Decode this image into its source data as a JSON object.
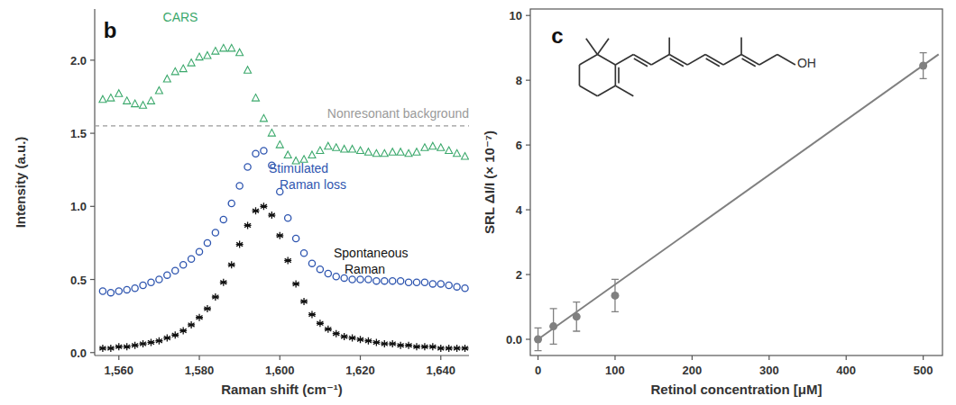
{
  "chart_data": [
    {
      "type": "scatter",
      "title": "b",
      "x_label": "Raman shift (cm⁻¹)",
      "y_label": "Intensity (a.u.)",
      "x": [
        1556,
        1558,
        1560,
        1562,
        1564,
        1566,
        1568,
        1570,
        1572,
        1574,
        1576,
        1578,
        1580,
        1582,
        1584,
        1586,
        1588,
        1590,
        1592,
        1594,
        1596,
        1598,
        1600,
        1602,
        1604,
        1606,
        1608,
        1610,
        1612,
        1614,
        1616,
        1618,
        1620,
        1622,
        1624,
        1626,
        1628,
        1630,
        1632,
        1634,
        1636,
        1638,
        1640,
        1642,
        1644,
        1646
      ],
      "series": [
        {
          "name": "CARS",
          "color": "#3aa86b",
          "marker": "triangle",
          "values": [
            1.73,
            1.74,
            1.77,
            1.72,
            1.7,
            1.69,
            1.72,
            1.79,
            1.87,
            1.92,
            1.94,
            1.98,
            2.02,
            2.03,
            2.06,
            2.08,
            2.08,
            2.05,
            1.93,
            1.74,
            1.6,
            1.5,
            1.42,
            1.35,
            1.31,
            1.32,
            1.35,
            1.38,
            1.41,
            1.4,
            1.39,
            1.39,
            1.38,
            1.37,
            1.36,
            1.36,
            1.37,
            1.37,
            1.36,
            1.37,
            1.4,
            1.41,
            1.4,
            1.38,
            1.36,
            1.34
          ]
        },
        {
          "name": "Stimulated Raman loss",
          "color": "#2f56b0",
          "marker": "circle",
          "values": [
            0.42,
            0.41,
            0.42,
            0.43,
            0.44,
            0.46,
            0.48,
            0.5,
            0.53,
            0.56,
            0.6,
            0.64,
            0.69,
            0.75,
            0.82,
            0.91,
            1.02,
            1.14,
            1.27,
            1.36,
            1.38,
            1.28,
            1.1,
            0.92,
            0.78,
            0.68,
            0.61,
            0.57,
            0.54,
            0.52,
            0.51,
            0.5,
            0.5,
            0.5,
            0.49,
            0.49,
            0.49,
            0.49,
            0.48,
            0.48,
            0.48,
            0.47,
            0.47,
            0.46,
            0.45,
            0.44
          ]
        },
        {
          "name": "Spontaneous Raman",
          "color": "#111111",
          "marker": "asterisk",
          "values": [
            0.03,
            0.03,
            0.04,
            0.04,
            0.05,
            0.06,
            0.07,
            0.08,
            0.1,
            0.12,
            0.15,
            0.19,
            0.24,
            0.3,
            0.38,
            0.48,
            0.6,
            0.74,
            0.87,
            0.97,
            1.0,
            0.94,
            0.8,
            0.63,
            0.47,
            0.35,
            0.26,
            0.2,
            0.16,
            0.13,
            0.11,
            0.1,
            0.09,
            0.08,
            0.07,
            0.06,
            0.06,
            0.05,
            0.05,
            0.04,
            0.04,
            0.04,
            0.03,
            0.03,
            0.03,
            0.03
          ]
        }
      ],
      "reference_line": {
        "label": "Nonresonant background",
        "value": 1.55,
        "color": "#9a9a9a",
        "line_style": "dashed"
      },
      "xlim": [
        1554,
        1647
      ],
      "ylim": [
        -0.02,
        2.35
      ],
      "xticks": [
        {
          "value": 1560,
          "label": "1,560"
        },
        {
          "value": 1580,
          "label": "1,580"
        },
        {
          "value": 1600,
          "label": "1,600"
        },
        {
          "value": 1620,
          "label": "1,620"
        },
        {
          "value": 1640,
          "label": "1,640"
        }
      ],
      "yticks": [
        {
          "value": 0,
          "label": "0.0"
        },
        0.5,
        {
          "value": 1,
          "label": "1.0"
        },
        1.5,
        {
          "value": 2,
          "label": "2.0"
        }
      ],
      "grid": false
    },
    {
      "type": "scatter",
      "title": "c",
      "x_label": "Retinol concentration [μM]",
      "y_label": "SRL ΔI/I (× 10⁻⁷)",
      "series": [
        {
          "type": "scatter",
          "color": "#808080",
          "marker": "circle",
          "x": [
            0,
            20,
            50,
            100,
            500
          ],
          "values": [
            0.0,
            0.4,
            0.7,
            1.35,
            8.45
          ],
          "errors": [
            0.35,
            0.55,
            0.45,
            0.5,
            0.4
          ]
        },
        {
          "type": "line",
          "color": "#808080",
          "line_style": "solid",
          "x": [
            0,
            520
          ],
          "values": [
            0,
            8.8
          ]
        }
      ],
      "structure_label": "OH",
      "xlim": [
        -10,
        525
      ],
      "ylim": [
        -0.5,
        10.2
      ],
      "xticks": [
        0,
        100,
        200,
        300,
        400,
        500
      ],
      "yticks": [
        {
          "value": 0,
          "label": "0.0"
        },
        2,
        4,
        6,
        8,
        10
      ],
      "grid": false
    }
  ]
}
